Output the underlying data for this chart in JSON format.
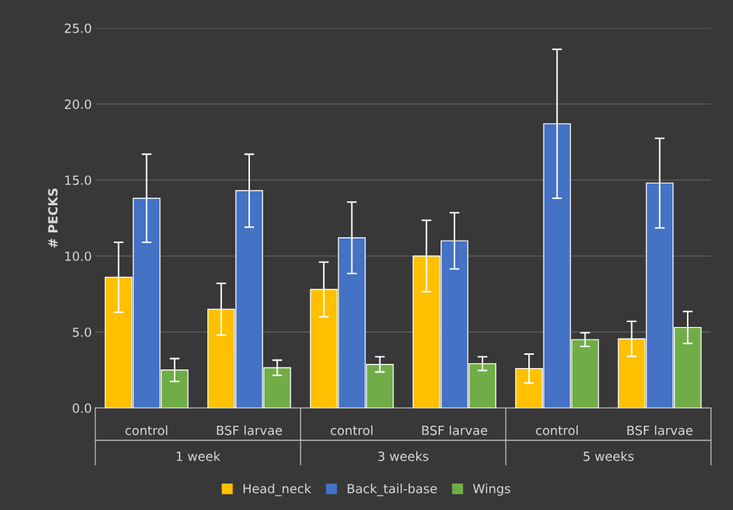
{
  "chart_data": {
    "type": "bar",
    "categories": [
      "control",
      "BSF larvae",
      "control",
      "BSF larvae",
      "control",
      "BSF larvae"
    ],
    "annotations": [
      "1 week",
      "3 weeks",
      "5 weeks"
    ],
    "ylabel": "# PECKS",
    "series": [
      {
        "name": "Head_neck",
        "color": "#ffc000",
        "values": [
          8.6,
          6.5,
          7.8,
          10.0,
          2.6,
          4.55
        ],
        "errors": [
          2.3,
          1.7,
          1.8,
          2.35,
          0.95,
          1.15
        ]
      },
      {
        "name": "Back_tail-base",
        "color": "#4472c4",
        "values": [
          13.8,
          14.3,
          11.2,
          11.0,
          18.7,
          14.8
        ],
        "errors": [
          2.9,
          2.4,
          2.35,
          1.85,
          4.9,
          2.95
        ]
      },
      {
        "name": "Wings",
        "color": "#70ad47",
        "values": [
          2.5,
          2.65,
          2.87,
          2.92,
          4.5,
          5.3
        ],
        "errors": [
          0.75,
          0.5,
          0.5,
          0.45,
          0.45,
          1.05
        ]
      }
    ],
    "ylim": [
      0,
      25
    ],
    "yticks": [
      {
        "value": 0,
        "label": "0.0"
      },
      {
        "value": 5,
        "label": "5.0"
      },
      {
        "value": 10,
        "label": "10.0"
      },
      {
        "value": 15,
        "label": "15.0"
      },
      {
        "value": 20,
        "label": "20.0"
      },
      {
        "value": 25,
        "label": "25.0"
      }
    ],
    "grid": "y",
    "legend": "bottom"
  }
}
